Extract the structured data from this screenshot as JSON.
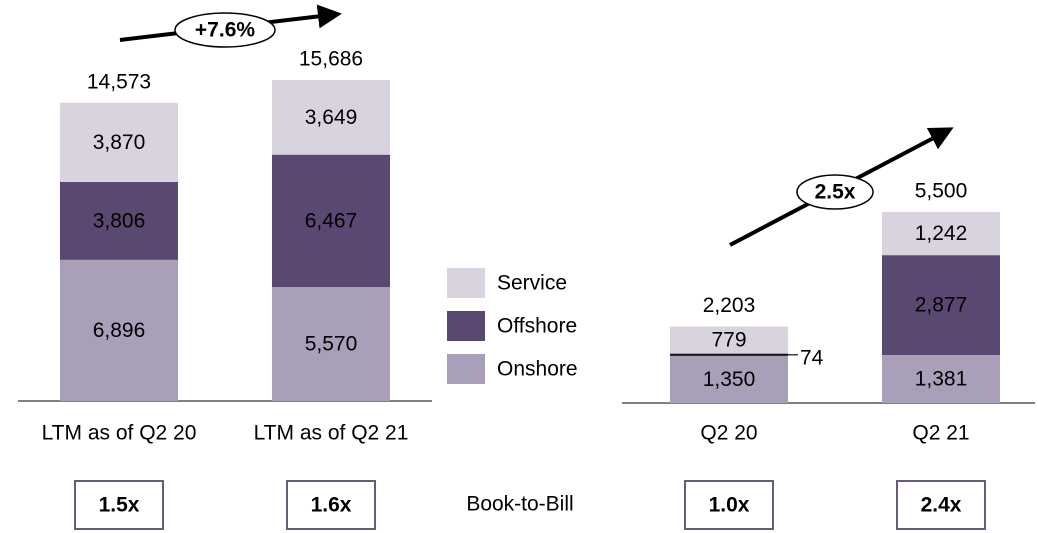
{
  "chart_data": [
    {
      "type": "stacked_bar",
      "categories": [
        "LTM as of Q2 20",
        "LTM as of Q2 21"
      ],
      "series": [
        {
          "name": "Onshore",
          "color": "#a99fb8",
          "values": [
            6896,
            5570
          ],
          "value_labels": [
            "6,896",
            "5,570"
          ]
        },
        {
          "name": "Offshore",
          "color": "#5a4872",
          "values": [
            3806,
            6467
          ],
          "value_labels": [
            "3,806",
            "6,467"
          ]
        },
        {
          "name": "Service",
          "color": "#d9d3e0",
          "values": [
            3870,
            3649
          ],
          "value_labels": [
            "3,870",
            "3,649"
          ]
        }
      ],
      "totals": [
        14573,
        15686
      ],
      "total_labels": [
        "14,573",
        "15,686"
      ],
      "growth": "+7.6%",
      "book_to_bill": [
        "1.5x",
        "1.6x"
      ]
    },
    {
      "type": "stacked_bar",
      "categories": [
        "Q2 20",
        "Q2 21"
      ],
      "series": [
        {
          "color": "#a99fb8",
          "values": [
            1350,
            1381
          ],
          "value_labels": [
            "1,350",
            "1,381"
          ]
        },
        {
          "color": "#5a4872",
          "values": [
            74,
            2877
          ],
          "value_labels": [
            "74",
            "2,877"
          ]
        },
        {
          "color": "#d9d3e0",
          "values": [
            779,
            1242
          ],
          "value_labels": [
            "779",
            "1,242"
          ]
        }
      ],
      "totals": [
        2203,
        5500
      ],
      "total_labels": [
        "2,203",
        "5,500"
      ],
      "growth": "2.5x",
      "book_to_bill": [
        "1.0x",
        "2.4x"
      ]
    }
  ],
  "book_to_bill_label": "Book-to-Bill"
}
